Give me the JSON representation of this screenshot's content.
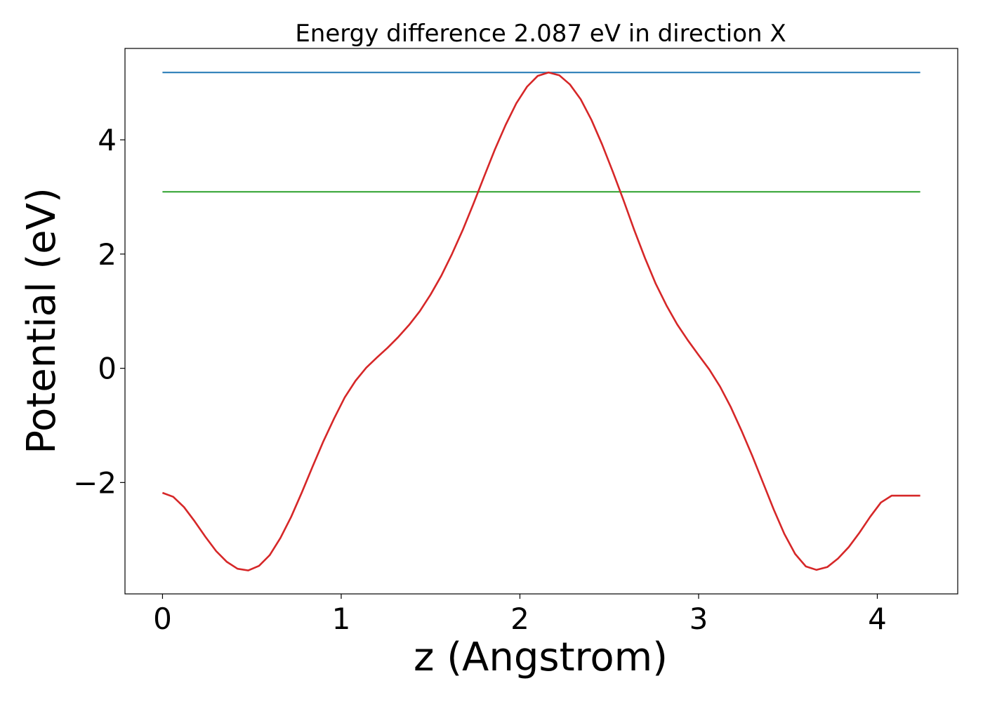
{
  "chart_data": {
    "type": "line",
    "title": "Energy difference 2.087 eV in direction X",
    "xlabel": "z (Angstrom)",
    "ylabel": "Potential (eV)",
    "xlim": [
      -0.21,
      4.45
    ],
    "ylim": [
      -3.95,
      5.6
    ],
    "xticks": [
      0,
      1,
      2,
      3,
      4
    ],
    "yticks": [
      -2,
      0,
      2,
      4
    ],
    "xtick_labels": [
      "0",
      "1",
      "2",
      "3",
      "4"
    ],
    "ytick_labels": [
      "−2",
      "0",
      "2",
      "4"
    ],
    "grid": false,
    "series": [
      {
        "color": "#1f77b4",
        "x": [
          0,
          4.24
        ],
        "y": [
          5.18,
          5.18
        ]
      },
      {
        "color": "#2ca02c",
        "x": [
          0,
          4.24
        ],
        "y": [
          3.09,
          3.09
        ]
      },
      {
        "color": "#d62728",
        "x": [
          0,
          0.06,
          0.12,
          0.18,
          0.24,
          0.3,
          0.36,
          0.42,
          0.48,
          0.54,
          0.6,
          0.66,
          0.72,
          0.78,
          0.84,
          0.9,
          0.96,
          1.02,
          1.08,
          1.14,
          1.2,
          1.26,
          1.32,
          1.38,
          1.44,
          1.5,
          1.56,
          1.62,
          1.68,
          1.74,
          1.8,
          1.86,
          1.92,
          1.98,
          2.04,
          2.1,
          2.16,
          2.22,
          2.28,
          2.34,
          2.4,
          2.46,
          2.52,
          2.58,
          2.64,
          2.7,
          2.76,
          2.82,
          2.88,
          2.94,
          3.0,
          3.06,
          3.12,
          3.18,
          3.24,
          3.3,
          3.36,
          3.42,
          3.48,
          3.54,
          3.6,
          3.66,
          3.72,
          3.78,
          3.84,
          3.9,
          3.96,
          4.02,
          4.08,
          4.14,
          4.2,
          4.24
        ],
        "y": [
          -2.18,
          -2.25,
          -2.43,
          -2.68,
          -2.95,
          -3.2,
          -3.39,
          -3.51,
          -3.54,
          -3.46,
          -3.27,
          -2.97,
          -2.6,
          -2.17,
          -1.72,
          -1.28,
          -0.88,
          -0.51,
          -0.22,
          0.01,
          0.19,
          0.36,
          0.55,
          0.76,
          1.0,
          1.29,
          1.62,
          2.0,
          2.42,
          2.88,
          3.36,
          3.83,
          4.26,
          4.64,
          4.93,
          5.12,
          5.18,
          5.13,
          4.97,
          4.71,
          4.35,
          3.92,
          3.44,
          2.94,
          2.42,
          1.93,
          1.48,
          1.1,
          0.77,
          0.49,
          0.23,
          -0.02,
          -0.32,
          -0.68,
          -1.09,
          -1.53,
          -2.0,
          -2.47,
          -2.9,
          -3.25,
          -3.47,
          -3.53,
          -3.48,
          -3.33,
          -3.13,
          -2.88,
          -2.6,
          -2.35,
          -2.23,
          -2.23,
          -2.23,
          -2.23
        ]
      }
    ]
  }
}
